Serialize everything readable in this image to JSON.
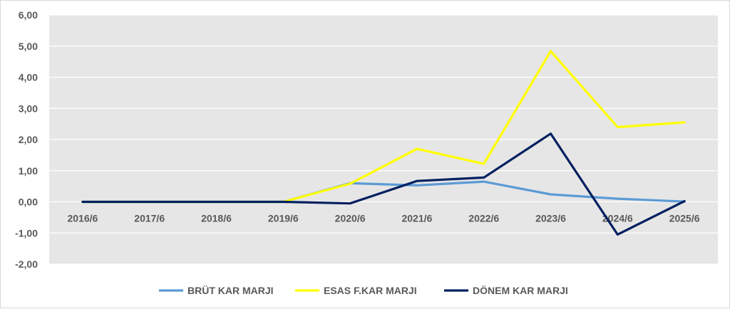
{
  "chart_data": {
    "type": "line",
    "title": "",
    "xlabel": "",
    "ylabel": "",
    "categories": [
      "2016/6",
      "2017/6",
      "2018/6",
      "2019/6",
      "2020/6",
      "2021/6",
      "2022/6",
      "2023/6",
      "2024/6",
      "2025/6"
    ],
    "ylim": [
      -2,
      6
    ],
    "yticks": [
      "-2,00",
      "-1,00",
      "0,00",
      "1,00",
      "2,00",
      "3,00",
      "4,00",
      "5,00",
      "6,00"
    ],
    "grid": true,
    "legend_position": "bottom",
    "plot_background": "#e7e6e6",
    "series": [
      {
        "name": "BRÜT KAR MARJI",
        "color": "#5b9bd5",
        "values": [
          0,
          0,
          0,
          0,
          0.6,
          0.53,
          0.65,
          0.24,
          0.1,
          0.01
        ]
      },
      {
        "name": "ESAS F.KAR MARJI",
        "color": "#ffff00",
        "values": [
          0,
          0,
          0,
          0,
          0.58,
          1.7,
          1.22,
          4.84,
          2.4,
          2.55
        ]
      },
      {
        "name": "DÖNEM KAR MARJI",
        "color": "#002060",
        "values": [
          0,
          0,
          0,
          0,
          -0.05,
          0.67,
          0.78,
          2.19,
          -1.05,
          0.02
        ]
      }
    ]
  }
}
